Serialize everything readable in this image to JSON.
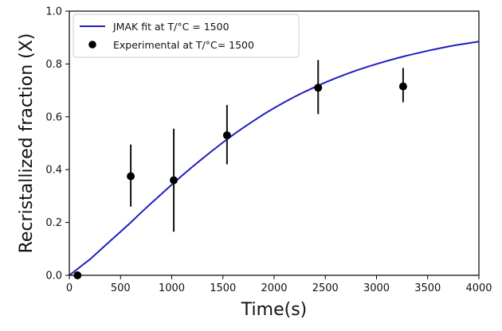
{
  "chart_data": {
    "type": "scatter",
    "title": "",
    "xlabel": "Time(s)",
    "ylabel": "Recristallized fraction (X)",
    "xlim": [
      0,
      4000
    ],
    "ylim": [
      0,
      1.0
    ],
    "x_ticks": [
      0,
      500,
      1000,
      1500,
      2000,
      2500,
      3000,
      3500,
      4000
    ],
    "y_ticks": [
      0.0,
      0.2,
      0.4,
      0.6,
      0.8,
      1.0
    ],
    "x_tick_labels": [
      "0",
      "500",
      "1000",
      "1500",
      "2000",
      "2500",
      "3000",
      "3500",
      "4000"
    ],
    "y_tick_labels": [
      "0.0",
      "0.2",
      "0.4",
      "0.6",
      "0.8",
      "1.0"
    ],
    "grid": false,
    "legend_position": "top-left",
    "series": [
      {
        "name": "JMAK fit at T/°C = 1500",
        "kind": "line",
        "color": "#1f1fbf",
        "x": [
          0,
          100,
          200,
          300,
          400,
          500,
          600,
          700,
          800,
          900,
          1000,
          1100,
          1200,
          1300,
          1400,
          1500,
          1600,
          1700,
          1800,
          1900,
          2000,
          2100,
          2200,
          2300,
          2400,
          2500,
          2600,
          2700,
          2800,
          2900,
          3000,
          3100,
          3200,
          3300,
          3400,
          3500,
          3600,
          3700,
          3800,
          3900,
          4000
        ],
        "y": [
          0.0,
          0.03,
          0.06,
          0.095,
          0.13,
          0.165,
          0.2,
          0.237,
          0.273,
          0.308,
          0.343,
          0.377,
          0.41,
          0.442,
          0.473,
          0.503,
          0.532,
          0.559,
          0.585,
          0.61,
          0.633,
          0.655,
          0.676,
          0.695,
          0.713,
          0.73,
          0.746,
          0.761,
          0.775,
          0.788,
          0.8,
          0.811,
          0.822,
          0.832,
          0.841,
          0.85,
          0.858,
          0.866,
          0.873,
          0.879,
          0.885
        ]
      },
      {
        "name": "Experimental at T/°C= 1500",
        "kind": "scatter",
        "color": "#000000",
        "points": [
          {
            "x": 80,
            "y": 0.0,
            "err_low": 0.0,
            "err_high": 0.0
          },
          {
            "x": 600,
            "y": 0.375,
            "err_low": 0.26,
            "err_high": 0.495
          },
          {
            "x": 1020,
            "y": 0.36,
            "err_low": 0.165,
            "err_high": 0.555
          },
          {
            "x": 1540,
            "y": 0.53,
            "err_low": 0.42,
            "err_high": 0.645
          },
          {
            "x": 2430,
            "y": 0.71,
            "err_low": 0.61,
            "err_high": 0.815
          },
          {
            "x": 3260,
            "y": 0.715,
            "err_low": 0.655,
            "err_high": 0.785
          }
        ]
      }
    ]
  }
}
